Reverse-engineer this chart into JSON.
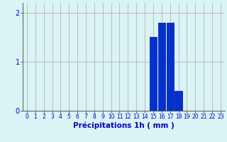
{
  "hours": [
    0,
    1,
    2,
    3,
    4,
    5,
    6,
    7,
    8,
    9,
    10,
    11,
    12,
    13,
    14,
    15,
    16,
    17,
    18,
    19,
    20,
    21,
    22,
    23
  ],
  "values": [
    0,
    0,
    0,
    0,
    0,
    0,
    0,
    0,
    0,
    0,
    0,
    0,
    0,
    0,
    0,
    1.5,
    1.8,
    1.8,
    0.4,
    0,
    0,
    0,
    0,
    0
  ],
  "bar_color": "#0033cc",
  "bar_edge_color": "#0000aa",
  "xlabel": "Précipitations 1h ( mm )",
  "xlabel_color": "#0000cc",
  "tick_color": "#0000cc",
  "background_color": "#d8f4f4",
  "grid_color": "#c0a0a0",
  "ylim": [
    0,
    2.2
  ],
  "yticks": [
    0,
    1,
    2
  ],
  "xlim": [
    -0.5,
    23.5
  ],
  "xlabel_fontsize": 7.5,
  "tick_fontsize": 5.5
}
